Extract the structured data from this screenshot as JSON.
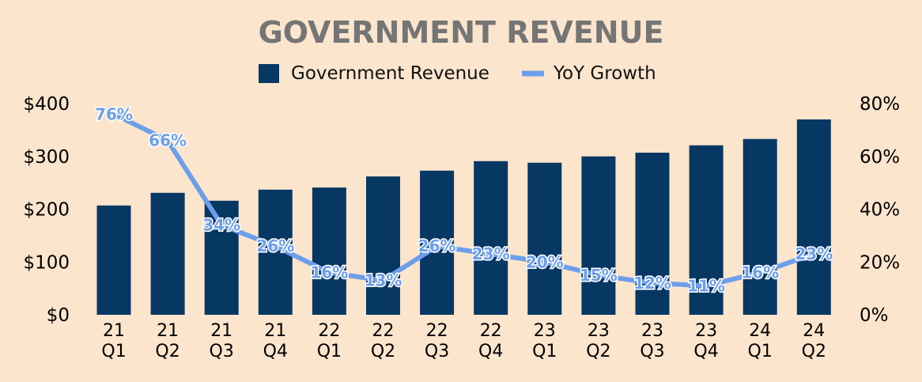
{
  "colors": {
    "background": "#fce5cd",
    "bar": "#073763",
    "line": "#6d9eeb",
    "title": "#757575"
  },
  "chart_data": {
    "type": "bar",
    "title": "GOVERNMENT REVENUE",
    "categories": [
      "21 Q1",
      "21 Q2",
      "21 Q3",
      "21 Q4",
      "22 Q1",
      "22 Q2",
      "22 Q3",
      "22 Q4",
      "23 Q1",
      "23 Q2",
      "23 Q3",
      "23 Q4",
      "24 Q1",
      "24 Q2"
    ],
    "category_lines": [
      [
        "21",
        "Q1"
      ],
      [
        "21",
        "Q2"
      ],
      [
        "21",
        "Q3"
      ],
      [
        "21",
        "Q4"
      ],
      [
        "22",
        "Q1"
      ],
      [
        "22",
        "Q2"
      ],
      [
        "22",
        "Q3"
      ],
      [
        "22",
        "Q4"
      ],
      [
        "23",
        "Q1"
      ],
      [
        "23",
        "Q2"
      ],
      [
        "23",
        "Q3"
      ],
      [
        "23",
        "Q4"
      ],
      [
        "24",
        "Q1"
      ],
      [
        "24",
        "Q2"
      ]
    ],
    "series": [
      {
        "name": "Government Revenue",
        "type": "bar",
        "axis": "left",
        "values": [
          207,
          231,
          216,
          237,
          241,
          262,
          273,
          291,
          288,
          300,
          307,
          321,
          333,
          370
        ]
      },
      {
        "name": "YoY Growth",
        "type": "line",
        "axis": "right",
        "unit": "%",
        "values": [
          76,
          66,
          34,
          26,
          16,
          13,
          26,
          23,
          20,
          15,
          12,
          11,
          16,
          23
        ],
        "labels": [
          "76%",
          "66%",
          "34%",
          "26%",
          "16%",
          "13%",
          "26%",
          "23%",
          "20%",
          "15%",
          "12%",
          "11%",
          "16%",
          "23%"
        ]
      }
    ],
    "y_left": {
      "min": 0,
      "max": 400,
      "ticks": [
        0,
        100,
        200,
        300,
        400
      ],
      "tick_labels": [
        "$0",
        "$100",
        "$200",
        "$300",
        "$400"
      ]
    },
    "y_right": {
      "min": 0,
      "max": 80,
      "ticks": [
        0,
        20,
        40,
        60,
        80
      ],
      "tick_labels": [
        "0%",
        "20%",
        "40%",
        "60%",
        "80%"
      ]
    },
    "legend": {
      "position": "top-center",
      "items": [
        {
          "label": "Government Revenue",
          "symbol": "bar-swatch"
        },
        {
          "label": "YoY Growth",
          "symbol": "line-swatch"
        }
      ]
    },
    "grid": false
  }
}
